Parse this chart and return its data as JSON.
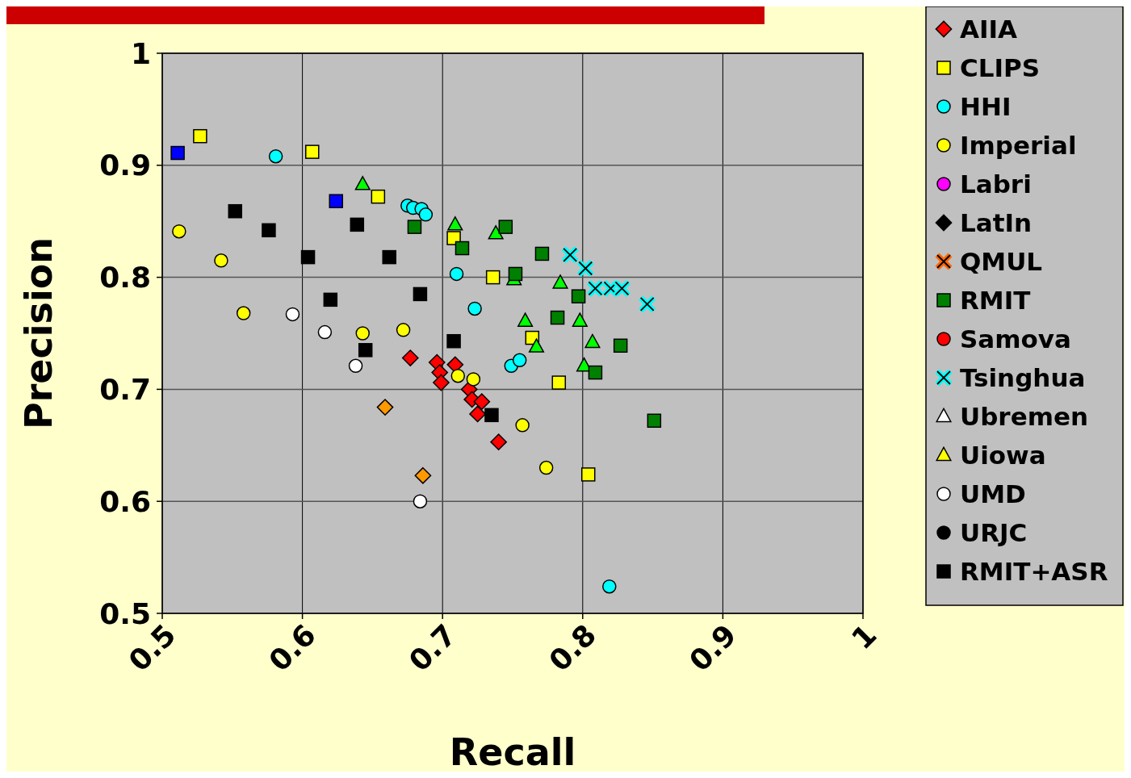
{
  "chart_data": {
    "type": "scatter",
    "xlabel": "Recall",
    "ylabel": "Precision",
    "xlim": [
      0.5,
      1
    ],
    "ylim": [
      0.5,
      1
    ],
    "xticks": [
      0.5,
      0.6,
      0.7,
      0.8,
      0.9,
      1
    ],
    "yticks": [
      0.5,
      0.6,
      0.7,
      0.8,
      0.9,
      1
    ],
    "grid": true,
    "legend": "right",
    "series": [
      {
        "name": "AIIA",
        "color": "#ff0000",
        "marker": "diamond",
        "x": [
          0.677,
          0.696,
          0.698,
          0.699,
          0.709,
          0.719,
          0.721,
          0.728,
          0.725,
          0.74
        ],
        "values": [
          0.728,
          0.724,
          0.715,
          0.706,
          0.722,
          0.7,
          0.691,
          0.689,
          0.678,
          0.653
        ]
      },
      {
        "name": "CLIPS",
        "color": "#ffff00",
        "marker": "square",
        "x": [
          0.527,
          0.607,
          0.654,
          0.708,
          0.736,
          0.764,
          0.783,
          0.804
        ],
        "values": [
          0.926,
          0.912,
          0.872,
          0.835,
          0.8,
          0.746,
          0.706,
          0.624
        ]
      },
      {
        "color": "#00ff00",
        "marker": "triangle",
        "x": [
          0.643,
          0.709,
          0.738,
          0.751,
          0.784,
          0.759,
          0.767,
          0.798,
          0.807,
          0.801
        ],
        "values": [
          0.883,
          0.847,
          0.839,
          0.798,
          0.795,
          0.761,
          0.738,
          0.761,
          0.742,
          0.721
        ]
      },
      {
        "name": "HHI",
        "color": "#00ffff",
        "marker": "circle",
        "x": [
          0.581,
          0.675,
          0.679,
          0.685,
          0.688,
          0.71,
          0.723,
          0.749,
          0.755,
          0.819
        ],
        "values": [
          0.908,
          0.864,
          0.862,
          0.861,
          0.856,
          0.803,
          0.772,
          0.721,
          0.726,
          0.524
        ]
      },
      {
        "color": "#0000ff",
        "marker": "square",
        "x": [
          0.511,
          0.624
        ],
        "values": [
          0.911,
          0.868
        ]
      },
      {
        "name": "Imperial",
        "color": "#ffff00",
        "marker": "circle",
        "x": [
          0.512,
          0.542,
          0.558,
          0.643,
          0.672,
          0.711,
          0.722,
          0.757,
          0.774
        ],
        "values": [
          0.841,
          0.815,
          0.768,
          0.75,
          0.753,
          0.712,
          0.709,
          0.668,
          0.63
        ]
      },
      {
        "color": "#ff9900",
        "marker": "diamond",
        "x": [
          0.659,
          0.686
        ],
        "values": [
          0.684,
          0.623
        ]
      },
      {
        "name": "Labri",
        "color": "#ff00ff",
        "marker": "circle"
      },
      {
        "name": "LatIn",
        "color": "#000000",
        "marker": "diamond"
      },
      {
        "name": "QMUL",
        "color": "#ff6600",
        "marker": "cross"
      },
      {
        "name": "RMIT",
        "color": "#008000",
        "marker": "square",
        "x": [
          0.68,
          0.745,
          0.714,
          0.771,
          0.752,
          0.797,
          0.782,
          0.827,
          0.809,
          0.851
        ],
        "values": [
          0.845,
          0.845,
          0.826,
          0.821,
          0.803,
          0.783,
          0.764,
          0.739,
          0.715,
          0.672
        ]
      },
      {
        "name": "Samova",
        "color": "#ff0000",
        "marker": "circle"
      },
      {
        "name": "Tsinghua",
        "color": "#00ffff",
        "marker": "cross",
        "x": [
          0.791,
          0.802,
          0.809,
          0.82,
          0.828,
          0.846
        ],
        "values": [
          0.82,
          0.808,
          0.79,
          0.79,
          0.79,
          0.776
        ]
      },
      {
        "name": "Ubremen",
        "color": "#ffffff",
        "marker": "triangle"
      },
      {
        "name": "Uiowa",
        "color": "#ffff00",
        "marker": "triangle"
      },
      {
        "name": "UMD",
        "color": "#ffffff",
        "marker": "circle",
        "x": [
          0.593,
          0.616,
          0.638,
          0.684
        ],
        "values": [
          0.767,
          0.751,
          0.721,
          0.6
        ]
      },
      {
        "name": "URJC",
        "color": "#000000",
        "marker": "circle"
      },
      {
        "name": "RMIT+ASR",
        "color": "#000000",
        "marker": "square",
        "x": [
          0.552,
          0.576,
          0.604,
          0.639,
          0.662,
          0.62,
          0.645,
          0.684,
          0.708,
          0.735
        ],
        "values": [
          0.859,
          0.842,
          0.818,
          0.847,
          0.818,
          0.78,
          0.735,
          0.785,
          0.743,
          0.677
        ]
      }
    ]
  }
}
